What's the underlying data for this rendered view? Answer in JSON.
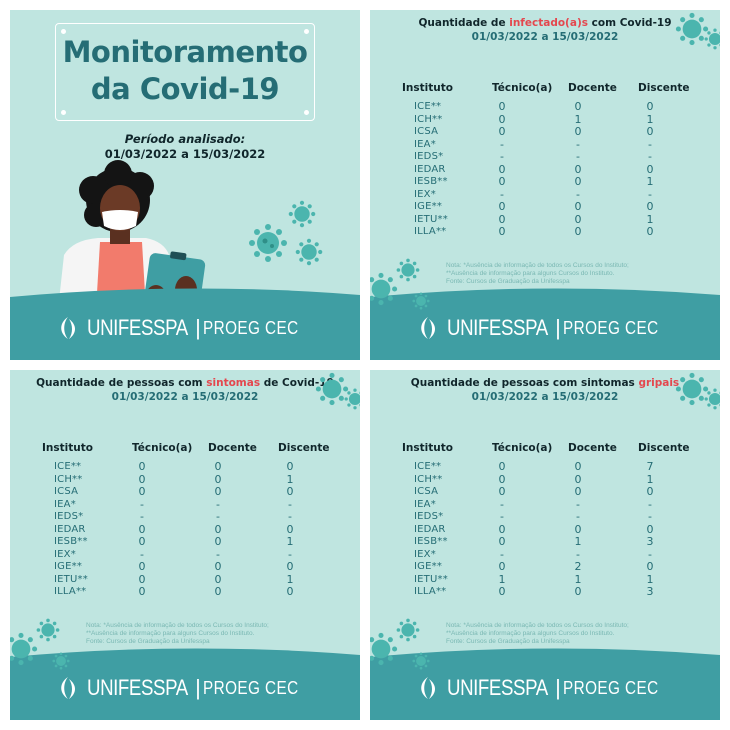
{
  "colors": {
    "background": "#bfe5e0",
    "title": "#256d75",
    "dark": "#10262b",
    "highlight": "#e4474e",
    "footer": "#3f9ea3",
    "note": "#7ab8b3"
  },
  "cover": {
    "title_line1": "Monitoramento",
    "title_line2": "da Covid-19",
    "period_label": "Período analisado:",
    "period_value": "01/03/2022 a 15/03/2022"
  },
  "logo": {
    "name": "UNIFESSPA",
    "separator": "|",
    "sub": "PROEG CEC"
  },
  "columns": [
    "Instituto",
    "Técnico(a)",
    "Docente",
    "Discente"
  ],
  "institutes": [
    "ICE**",
    "ICH**",
    "ICSA",
    "IEA*",
    "IEDS*",
    "IEDAR",
    "IESB**",
    "IEX*",
    "IGE**",
    "IETU**",
    "ILLA**"
  ],
  "note_lines": [
    "Nota: *Ausência de informação de todos os Cursos do Instituto;",
    "**Ausência de informação para alguns Cursos do Instituto.",
    "Fonte: Cursos de Graduação da Unifesspa"
  ],
  "tables": [
    {
      "title_pre": "Quantidade de ",
      "title_hl": "infectado(a)s",
      "title_post": " com Covid-19",
      "date": "01/03/2022 a 15/03/2022",
      "rows": [
        [
          "0",
          "0",
          "0"
        ],
        [
          "0",
          "1",
          "1"
        ],
        [
          "0",
          "0",
          "0"
        ],
        [
          "-",
          "-",
          "-"
        ],
        [
          "-",
          "-",
          "-"
        ],
        [
          "0",
          "0",
          "0"
        ],
        [
          "0",
          "0",
          "1"
        ],
        [
          "-",
          "-",
          "-"
        ],
        [
          "0",
          "0",
          "0"
        ],
        [
          "0",
          "0",
          "1"
        ],
        [
          "0",
          "0",
          "0"
        ]
      ]
    },
    {
      "title_pre": "Quantidade de pessoas com ",
      "title_hl": "sintomas",
      "title_post": " de Covid-19",
      "date": "01/03/2022 a 15/03/2022",
      "rows": [
        [
          "0",
          "0",
          "0"
        ],
        [
          "0",
          "0",
          "1"
        ],
        [
          "0",
          "0",
          "0"
        ],
        [
          "-",
          "-",
          "-"
        ],
        [
          "-",
          "-",
          "-"
        ],
        [
          "0",
          "0",
          "0"
        ],
        [
          "0",
          "0",
          "1"
        ],
        [
          "-",
          "-",
          "-"
        ],
        [
          "0",
          "0",
          "0"
        ],
        [
          "0",
          "0",
          "1"
        ],
        [
          "0",
          "0",
          "0"
        ]
      ]
    },
    {
      "title_pre": "Quantidade de pessoas com sintomas ",
      "title_hl": "gripais",
      "title_post": "",
      "date": "01/03/2022 a 15/03/2022",
      "rows": [
        [
          "0",
          "0",
          "7"
        ],
        [
          "0",
          "0",
          "1"
        ],
        [
          "0",
          "0",
          "0"
        ],
        [
          "-",
          "-",
          "-"
        ],
        [
          "-",
          "-",
          "-"
        ],
        [
          "0",
          "0",
          "0"
        ],
        [
          "0",
          "1",
          "3"
        ],
        [
          "-",
          "-",
          "-"
        ],
        [
          "0",
          "2",
          "0"
        ],
        [
          "1",
          "1",
          "1"
        ],
        [
          "0",
          "0",
          "3"
        ]
      ]
    }
  ]
}
